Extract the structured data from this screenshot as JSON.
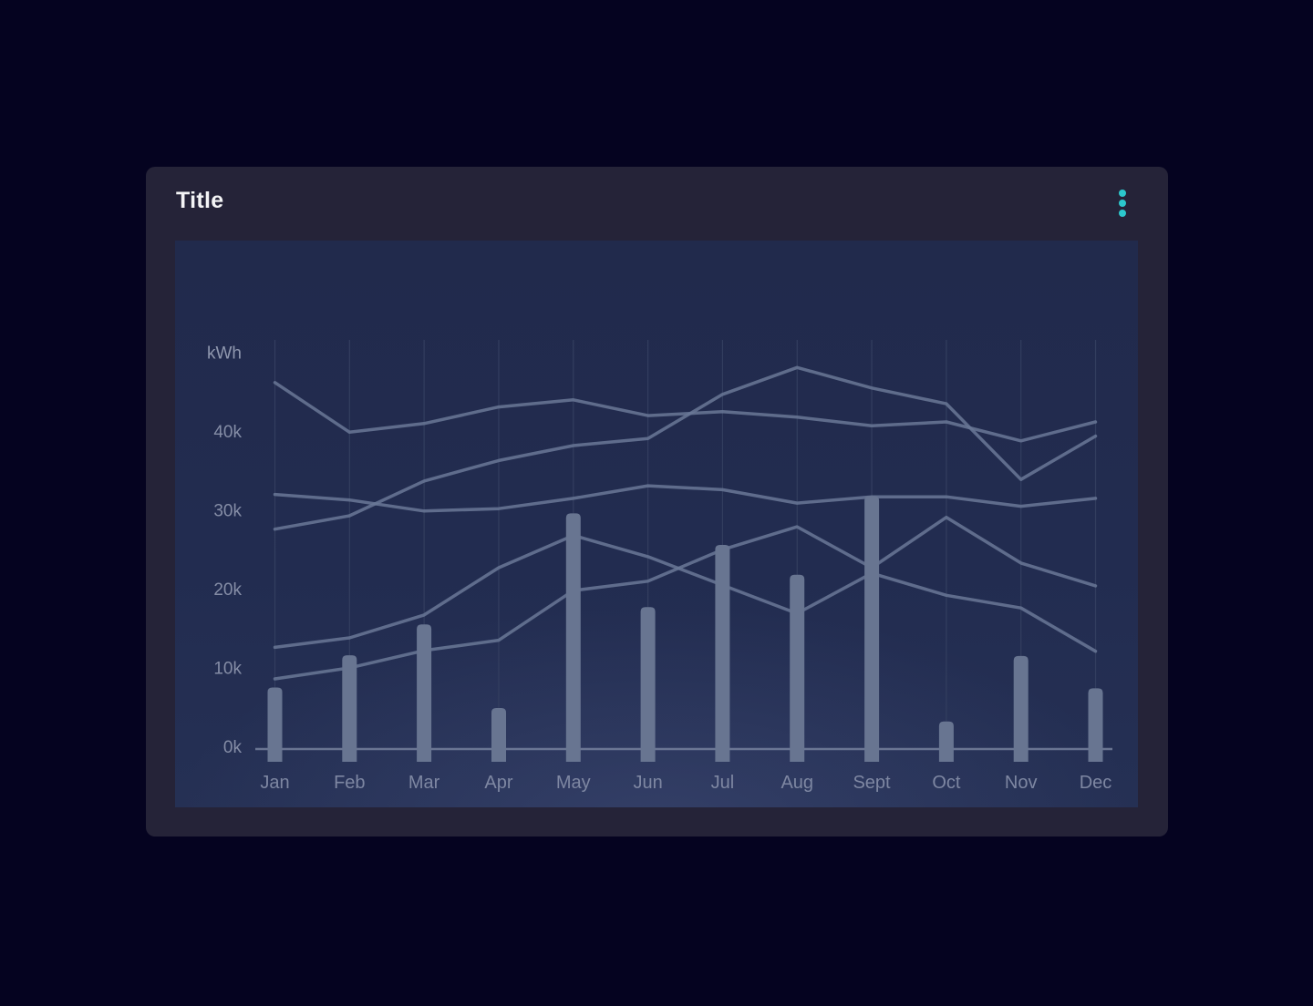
{
  "card": {
    "title": "Title"
  },
  "menu": {
    "icon": "vertical-kebab-menu",
    "dot_color": "#2CC8CD"
  },
  "chart_data": {
    "type": "combo-bar-line",
    "title": "",
    "unit_label": "kWh",
    "categories": [
      "Jan",
      "Feb",
      "Mar",
      "Apr",
      "May",
      "Jun",
      "Jul",
      "Aug",
      "Sept",
      "Oct",
      "Nov",
      "Dec"
    ],
    "y_axis": {
      "tick_labels": [
        "0k",
        "10k",
        "20k",
        "30k",
        "40k"
      ],
      "range_k": [
        0,
        52
      ],
      "grid": "vertical-gridlines-only",
      "legend": "none"
    },
    "bars": {
      "name": "monthly-bars",
      "unit": "kWh",
      "values_k": [
        7.8,
        11.9,
        15.8,
        5.2,
        29.9,
        18.0,
        25.9,
        22.1,
        32.1,
        3.5,
        11.8,
        7.7
      ]
    },
    "line_series": [
      {
        "name": "line-series-1",
        "values_k": [
          46.5,
          40.2,
          41.3,
          43.4,
          44.3,
          42.3,
          42.8,
          42.1,
          41.0,
          41.5,
          39.1,
          41.5
        ]
      },
      {
        "name": "line-series-2",
        "values_k": [
          27.9,
          29.6,
          34.0,
          36.6,
          38.5,
          39.4,
          45.0,
          48.4,
          45.8,
          43.8,
          34.2,
          39.7
        ]
      },
      {
        "name": "line-series-3",
        "values_k": [
          32.3,
          31.6,
          30.2,
          30.5,
          31.8,
          33.4,
          32.9,
          31.2,
          32.0,
          32.0,
          30.8,
          31.8
        ]
      },
      {
        "name": "line-series-4",
        "values_k": [
          12.9,
          14.1,
          17.0,
          23.0,
          27.1,
          24.4,
          20.8,
          17.2,
          22.3,
          19.5,
          17.9,
          12.4
        ]
      },
      {
        "name": "line-series-5",
        "values_k": [
          8.9,
          10.3,
          12.5,
          13.8,
          20.1,
          21.3,
          25.3,
          28.2,
          23.0,
          29.4,
          23.6,
          20.7
        ]
      }
    ],
    "colors": {
      "background": "#050320",
      "card": "#252338",
      "panel_top": "#212A4C",
      "panel_bottom": "#2A3458",
      "bar": "#687591",
      "line": "#6A7897",
      "grid": "#333E5F",
      "axis": "#7A86A1",
      "tick_text": "#858DA6",
      "unit_text": "#8F97AE",
      "month_text": "#7E87A2",
      "title_text": "#F4F4F6",
      "accent": "#2CC8CD"
    }
  }
}
